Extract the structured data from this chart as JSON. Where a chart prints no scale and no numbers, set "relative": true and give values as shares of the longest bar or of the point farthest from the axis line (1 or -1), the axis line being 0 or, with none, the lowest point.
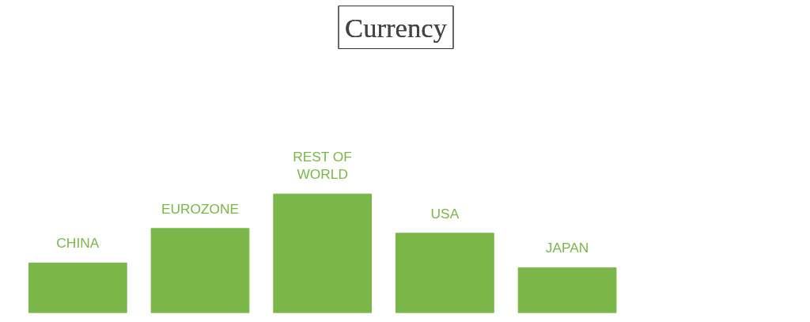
{
  "chart_data": {
    "type": "bar",
    "title": "Currency",
    "relative": true,
    "categories": [
      "CHINA",
      "EUROZONE",
      "REST OF WORLD",
      "USA",
      "JAPAN"
    ],
    "values": [
      0.42,
      0.71,
      1,
      0.67,
      0.38
    ],
    "color": "#7ab648",
    "grid": false,
    "tick_labels": false
  }
}
